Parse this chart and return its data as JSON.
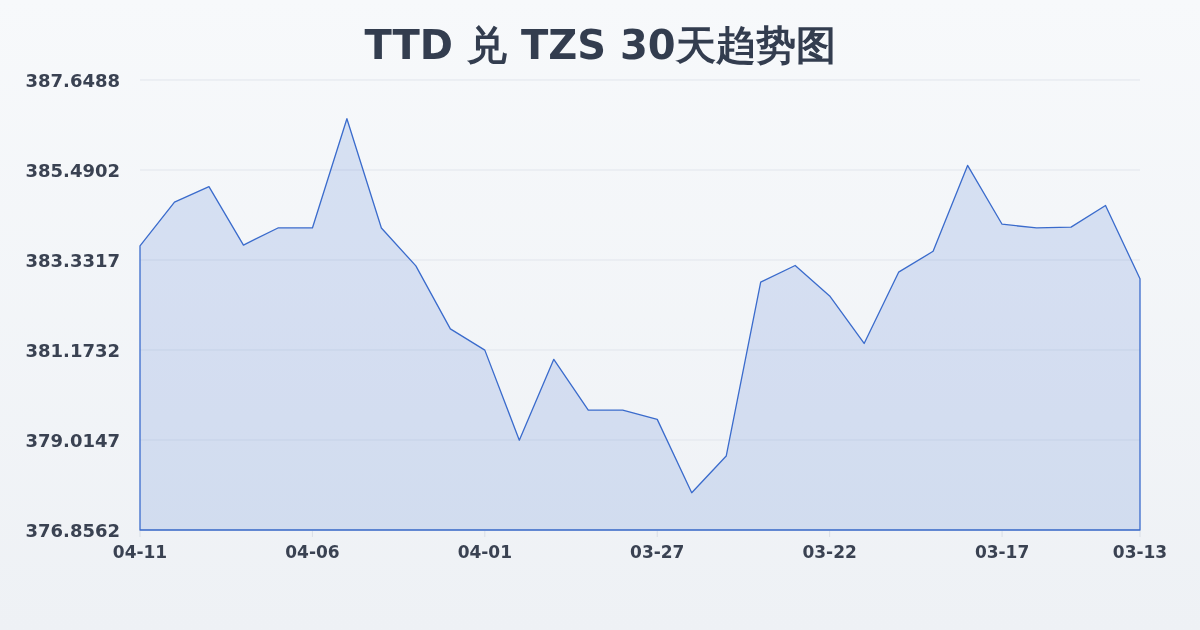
{
  "chart_data": {
    "type": "area",
    "title": "TTD 兑 TZS 30天趋势图",
    "categories": [
      "04-11",
      null,
      null,
      null,
      null,
      "04-06",
      null,
      null,
      null,
      null,
      "04-01",
      null,
      null,
      null,
      null,
      "03-27",
      null,
      null,
      null,
      null,
      "03-22",
      null,
      null,
      null,
      null,
      "03-17",
      null,
      null,
      null,
      "03-13"
    ],
    "values": [
      383.67,
      384.72,
      385.09,
      383.69,
      384.1,
      384.1,
      386.72,
      384.1,
      383.19,
      381.68,
      381.17,
      379.01,
      380.95,
      379.73,
      379.73,
      379.51,
      377.75,
      378.63,
      382.8,
      383.2,
      382.47,
      381.33,
      383.04,
      383.54,
      385.6,
      384.19,
      384.1,
      384.12,
      384.64,
      382.88
    ],
    "color": "#3a6bcc",
    "ylim": [
      376.8562,
      387.6488
    ],
    "yticks": [
      376.8562,
      379.0147,
      381.1732,
      383.3317,
      385.4902,
      387.6488
    ],
    "grid": "y",
    "line_style": "solid"
  }
}
